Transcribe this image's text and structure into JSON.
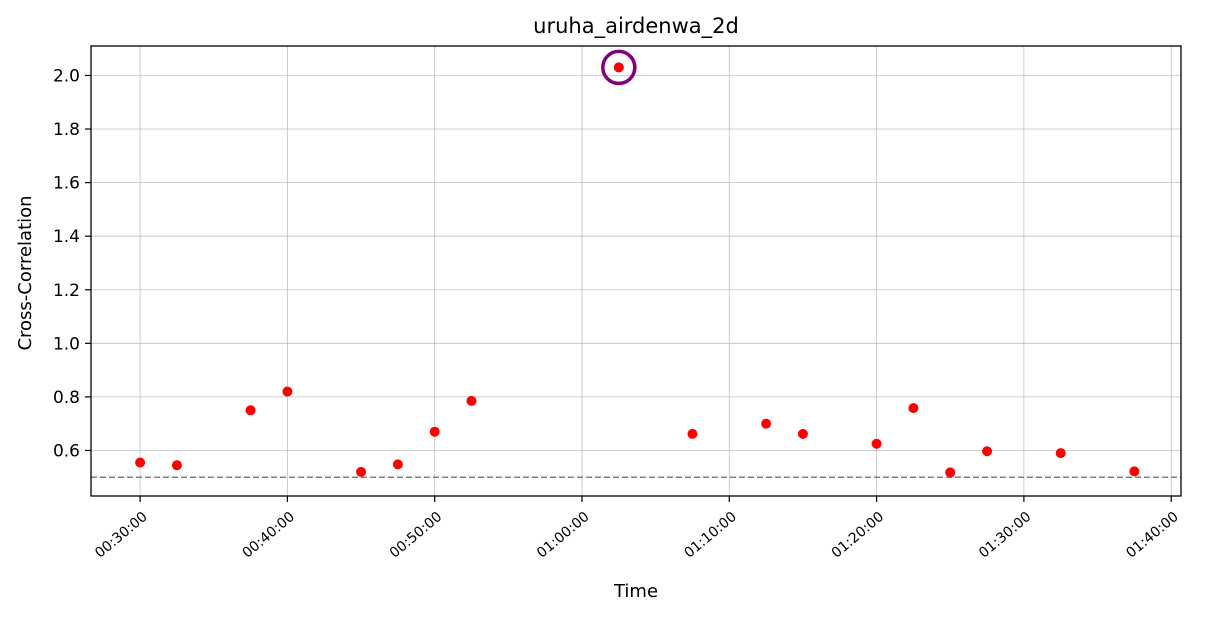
{
  "chart_data": {
    "type": "scatter",
    "title": "uruha_airdenwa_2d",
    "xlabel": "Time",
    "ylabel": "Cross-Correlation",
    "xlim": [
      "00:26:40",
      "01:40:40"
    ],
    "ylim": [
      0.43,
      2.11
    ],
    "xticks": [
      "00:30:00",
      "00:40:00",
      "00:50:00",
      "01:00:00",
      "01:10:00",
      "01:20:00",
      "01:30:00",
      "01:40:00"
    ],
    "yticks": [
      "0.6",
      "0.8",
      "1.0",
      "1.2",
      "1.4",
      "1.6",
      "1.8",
      "2.0"
    ],
    "grid": true,
    "threshold": 0.5,
    "points": [
      {
        "x": "00:30:00",
        "y": 0.555
      },
      {
        "x": "00:32:30",
        "y": 0.545
      },
      {
        "x": "00:37:30",
        "y": 0.75
      },
      {
        "x": "00:40:00",
        "y": 0.82
      },
      {
        "x": "00:45:00",
        "y": 0.52
      },
      {
        "x": "00:47:30",
        "y": 0.548
      },
      {
        "x": "00:50:00",
        "y": 0.67
      },
      {
        "x": "00:52:30",
        "y": 0.785
      },
      {
        "x": "01:02:30",
        "y": 2.03
      },
      {
        "x": "01:07:30",
        "y": 0.662
      },
      {
        "x": "01:12:30",
        "y": 0.7
      },
      {
        "x": "01:15:00",
        "y": 0.662
      },
      {
        "x": "01:20:00",
        "y": 0.625
      },
      {
        "x": "01:22:30",
        "y": 0.758
      },
      {
        "x": "01:25:00",
        "y": 0.518
      },
      {
        "x": "01:27:30",
        "y": 0.597
      },
      {
        "x": "01:32:30",
        "y": 0.59
      },
      {
        "x": "01:37:30",
        "y": 0.522
      }
    ],
    "highlight": {
      "x": "01:02:30",
      "y": 2.03
    },
    "colors": {
      "points": "#ff0000",
      "highlight": "#800080",
      "threshold": "#808080"
    }
  }
}
